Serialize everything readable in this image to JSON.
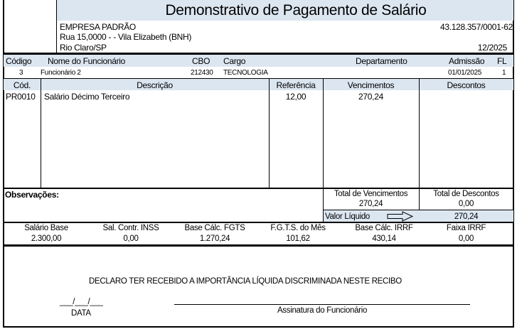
{
  "title": "Demonstrativo de Pagamento de Salário",
  "company": {
    "name": "EMPRESA PADRÃO",
    "address": "Rua 15,0000 -  - Vila Elizabeth (BNH)",
    "city": "Rio Claro/SP",
    "cnpj": "43.128.357/0001-62",
    "period": "12/2025"
  },
  "employee_headers": {
    "code": "Código",
    "name": "Nome do Funcionário",
    "cbo": "CBO",
    "role": "Cargo",
    "department": "Departamento",
    "admission": "Admissão",
    "fl": "FL"
  },
  "employee": {
    "code": "3",
    "name": "Funcionário 2",
    "cbo": "212430",
    "role": "TECNOLOGIA",
    "department": "",
    "admission": "01/01/2025",
    "fl": "1"
  },
  "item_headers": {
    "code": "Cód.",
    "description": "Descrição",
    "reference": "Referência",
    "earnings": "Vencimentos",
    "deductions": "Descontos"
  },
  "items": [
    {
      "code": "PR0010",
      "description": "Salário Décimo Terceiro",
      "reference": "12,00",
      "earnings": "270,24",
      "deductions": ""
    }
  ],
  "observations_label": "Observações:",
  "totals": {
    "earnings_label": "Total de Vencimentos",
    "earnings": "270,24",
    "deductions_label": "Total de Descontos",
    "deductions": "0,00",
    "net_label": "Valor Líquido",
    "net": "270,24"
  },
  "bases": [
    {
      "label": "Salário Base",
      "value": "2.300,00"
    },
    {
      "label": "Sal. Contr. INSS",
      "value": "0,00"
    },
    {
      "label": "Base Cálc. FGTS",
      "value": "1.270,24"
    },
    {
      "label": "F.G.T.S. do Mês",
      "value": "101,62"
    },
    {
      "label": "Base Cálc. IRRF",
      "value": "430,14"
    },
    {
      "label": "Faixa IRRF",
      "value": "0,00"
    }
  ],
  "declaration": "DECLARO TER RECEBIDO A IMPORTÂNCIA LÍQUIDA DISCRIMINADA NESTE RECIBO",
  "date_blank": "___/___/___",
  "date_label": "DATA",
  "signature_label": "Assinatura do Funcionário"
}
